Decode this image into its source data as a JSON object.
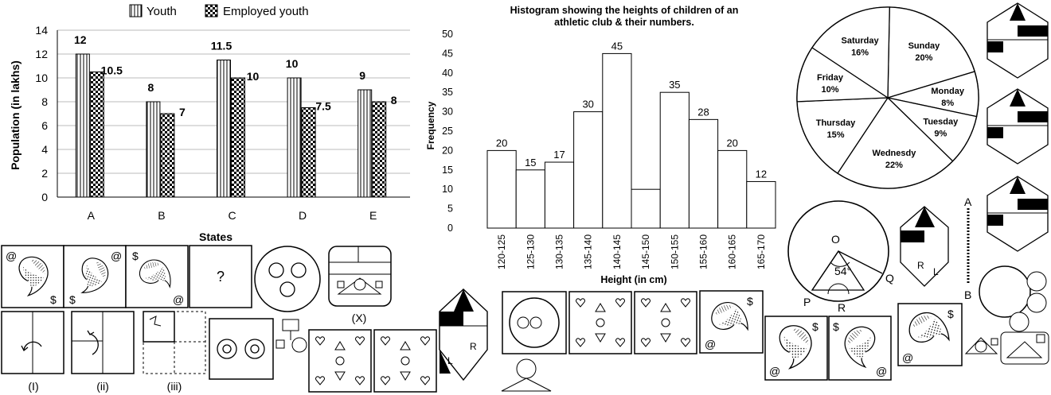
{
  "chart_data": [
    {
      "type": "bar",
      "legend": [
        "Youth",
        "Employed youth"
      ],
      "legend_position": "top",
      "categories": [
        "A",
        "B",
        "C",
        "D",
        "E"
      ],
      "series": [
        {
          "name": "Youth",
          "values": [
            12,
            8,
            11.5,
            10,
            9
          ],
          "labels": [
            "12",
            "8",
            "11.5",
            "10",
            "9"
          ]
        },
        {
          "name": "Employed youth",
          "values": [
            10.5,
            7,
            10,
            7.5,
            8
          ],
          "labels": [
            "10.5",
            "7",
            "10",
            "7.5",
            "8"
          ]
        }
      ],
      "xlabel": "States",
      "ylabel": "Population (in lakhs)",
      "ylim": [
        0,
        14
      ],
      "yticks": [
        "0",
        "2",
        "4",
        "6",
        "8",
        "10",
        "12",
        "14"
      ],
      "grid": true
    },
    {
      "type": "bar",
      "title_line1": "Histogram showing the heights of children of an",
      "title_line2": "athletic club & their numbers.",
      "categories": [
        "120-125",
        "125-130",
        "130-135",
        "135-140",
        "140-145",
        "145-150",
        "150-155",
        "155-160",
        "160-165",
        "165-170"
      ],
      "values": [
        20,
        15,
        17,
        30,
        45,
        10,
        35,
        28,
        20,
        12
      ],
      "value_labels": [
        "20",
        "15",
        "17",
        "30",
        "45",
        "",
        "35",
        "28",
        "20",
        "12"
      ],
      "xlabel": "Height (in cm)",
      "ylabel": "Frequency",
      "ylim": [
        0,
        50
      ],
      "yticks": [
        "0",
        "5",
        "10",
        "15",
        "20",
        "25",
        "30",
        "35",
        "40",
        "45",
        "50"
      ]
    },
    {
      "type": "pie",
      "slices": [
        {
          "label": "Sunday",
          "pct": "20%",
          "value": 20
        },
        {
          "label": "Monday",
          "pct": "8%",
          "value": 8
        },
        {
          "label": "Tuesday",
          "pct": "9%",
          "value": 9
        },
        {
          "label": "Wednesdy",
          "pct": "22%",
          "value": 22
        },
        {
          "label": "Thursday",
          "pct": "15%",
          "value": 15
        },
        {
          "label": "Friday",
          "pct": "10%",
          "value": 10
        },
        {
          "label": "Saturday",
          "pct": "16%",
          "value": 16
        }
      ]
    }
  ],
  "figures": {
    "paisley_symbols": [
      "@",
      "$",
      "?"
    ],
    "rotation_labels": [
      "(I)",
      "(ii)",
      "(iii)"
    ],
    "x_label": "(X)",
    "circle_labels": {
      "o": "O",
      "angle": "54°",
      "q": "Q",
      "p": "P",
      "r": "R"
    },
    "mirror_labels": {
      "a": "A",
      "b": "B",
      "r": "R",
      "l": "L"
    }
  }
}
